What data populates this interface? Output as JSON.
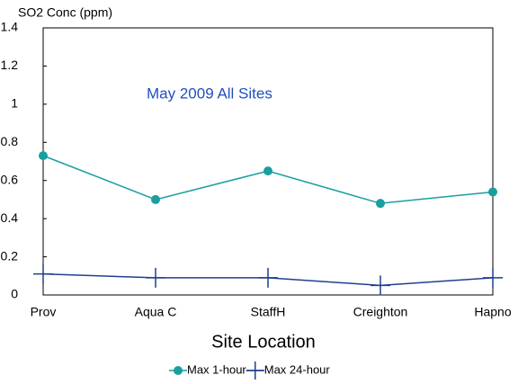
{
  "chart_data": {
    "type": "line",
    "title": "May 2009 All Sites",
    "y_label": "SO2 Conc (ppm)",
    "x_label": "Site Location",
    "categories": [
      "Prov",
      "Aqua C",
      "StaffH",
      "Creighton",
      "Hapno"
    ],
    "series": [
      {
        "name": "Max 1-hour",
        "color": "#1a9e9e",
        "marker": "circle",
        "values": [
          0.73,
          0.5,
          0.65,
          0.48,
          0.54
        ]
      },
      {
        "name": "Max 24-hour",
        "color": "#1f3f8f",
        "marker": "plus",
        "values": [
          0.11,
          0.09,
          0.09,
          0.05,
          0.09
        ]
      }
    ],
    "ylim": [
      0,
      1.4
    ],
    "yticks": [
      0,
      0.2,
      0.4,
      0.6,
      0.8,
      1,
      1.2,
      1.4
    ],
    "grid": false,
    "legend": "bottom"
  }
}
